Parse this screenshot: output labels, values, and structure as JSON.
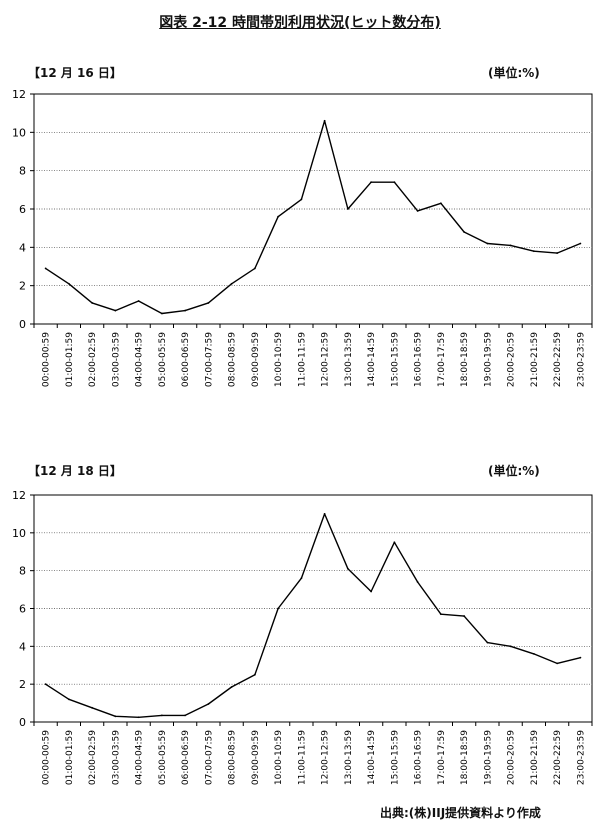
{
  "figure_title": "図表 2-12 時間帯別利用状況(ヒット数分布)",
  "source_note": "出典:(株)IIJ提供資料より作成",
  "chart_data": [
    {
      "type": "line",
      "panel_label": "【12 月 16 日】",
      "unit": "(単位:%)",
      "title": "",
      "xlabel": "",
      "ylabel": "",
      "ylim": [
        0,
        12
      ],
      "yticks": [
        0,
        2,
        4,
        6,
        8,
        10,
        12
      ],
      "grid": true,
      "categories": [
        "00:00-00:59",
        "01:00-01:59",
        "02:00-02:59",
        "03:00-03:59",
        "04:00-04:59",
        "05:00-05:59",
        "06:00-06:59",
        "07:00-07:59",
        "08:00-08:59",
        "09:00-09:59",
        "10:00-10:59",
        "11:00-11:59",
        "12:00-12:59",
        "13:00-13:59",
        "14:00-14:59",
        "15:00-15:59",
        "16:00-16:59",
        "17:00-17:59",
        "18:00-18:59",
        "19:00-19:59",
        "20:00-20:59",
        "21:00-21:59",
        "22:00-22:59",
        "23:00-23:59"
      ],
      "values": [
        2.9,
        2.1,
        1.1,
        0.7,
        1.2,
        0.55,
        0.7,
        1.1,
        2.1,
        2.9,
        5.6,
        6.5,
        10.6,
        6.0,
        7.4,
        7.4,
        5.9,
        6.3,
        4.8,
        4.2,
        4.1,
        3.8,
        3.7,
        4.2
      ]
    },
    {
      "type": "line",
      "panel_label": "【12 月 18 日】",
      "unit": "(単位:%)",
      "title": "",
      "xlabel": "",
      "ylabel": "",
      "ylim": [
        0,
        12
      ],
      "yticks": [
        0,
        2,
        4,
        6,
        8,
        10,
        12
      ],
      "grid": true,
      "categories": [
        "00:00-00:59",
        "01:00-01:59",
        "02:00-02:59",
        "03:00-03:59",
        "04:00-04:59",
        "05:00-05:59",
        "06:00-06:59",
        "07:00-07:59",
        "08:00-08:59",
        "09:00-09:59",
        "10:00-10:59",
        "11:00-11:59",
        "12:00-12:59",
        "13:00-13:59",
        "14:00-14:59",
        "15:00-15:59",
        "16:00-16:59",
        "17:00-17:59",
        "18:00-18:59",
        "19:00-19:59",
        "20:00-20:59",
        "21:00-21:59",
        "22:00-22:59",
        "23:00-23:59"
      ],
      "values": [
        2.0,
        1.2,
        0.75,
        0.3,
        0.25,
        0.35,
        0.35,
        0.95,
        1.85,
        2.5,
        6.0,
        7.6,
        11.0,
        8.1,
        6.9,
        9.5,
        7.4,
        5.7,
        5.6,
        4.2,
        4.0,
        3.6,
        3.1,
        3.4
      ]
    }
  ]
}
